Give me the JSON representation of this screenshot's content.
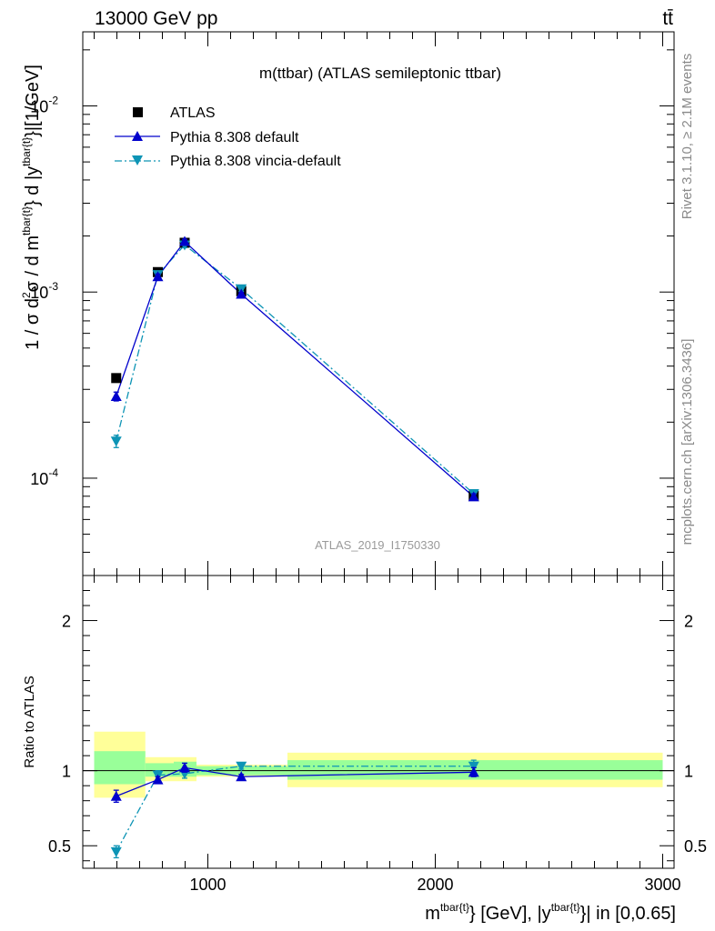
{
  "header": {
    "left": "13000 GeV pp",
    "right": "tt̄"
  },
  "side_labels": {
    "rivet": "Rivet 3.1.10, ≥ 2.1M events",
    "mcplots": "mcplots.cern.ch [arXiv:1306.3436]"
  },
  "main": {
    "title": "m(ttbar) (ATLAS semileptonic ttbar)",
    "watermark": "ATLAS_2019_I1750330",
    "ylabel_html": "1 / σ d²σ / d m^{tbar{t}} d |y^{tbar{t}}|[1/GeV]",
    "ylabel_parts": {
      "a": "1 / σ d",
      "a_sup": "2",
      "b": "σ / d m",
      "b_sup": "tbar{t}",
      "c": "} d |y",
      "c_sup": "tbar{t}",
      "d": "}|[1/GeV]"
    },
    "legend": [
      {
        "label": "ATLAS"
      },
      {
        "label": "Pythia 8.308 default"
      },
      {
        "label": "Pythia 8.308 vincia-default"
      }
    ]
  },
  "ratio": {
    "ylabel": "Ratio to ATLAS"
  },
  "xaxis": {
    "label_parts": {
      "a": "m",
      "a_sup": "tbar{t}",
      "b": "} [GeV], |y",
      "b_sup": "tbar{t}",
      "c": "}| in [0,0.65]"
    }
  },
  "colors": {
    "data": "#000000",
    "default": "#0000cc",
    "vincia": "#0d94b5",
    "band_inner": "#99ff99",
    "band_outer": "#ffff99"
  },
  "chart_data": [
    {
      "type": "scatter",
      "scale": "log-y",
      "xlim": [
        450,
        3050
      ],
      "ylim": [
        3e-05,
        0.025
      ],
      "x_ticks": [
        1000,
        2000,
        3000
      ],
      "x_tick_labels": [
        "1000",
        "2000",
        "3000"
      ],
      "y_ticks": [
        0.0001,
        0.001,
        0.01
      ],
      "y_tick_labels": [
        "10^-4",
        "10^-3",
        "10^-2"
      ],
      "bins": [
        [
          500,
          725
        ],
        [
          725,
          850
        ],
        [
          850,
          950
        ],
        [
          950,
          1350
        ],
        [
          1350,
          3000
        ]
      ],
      "x": [
        597,
        780,
        898,
        1147,
        2169
      ],
      "series": [
        {
          "name": "ATLAS",
          "values": [
            0.000345,
            0.00128,
            0.00184,
            0.00101,
            8.05e-05
          ],
          "errors": [
            1.2e-05,
            4e-05,
            5e-05,
            3e-05,
            4e-06
          ]
        },
        {
          "name": "Pythia 8.308 default",
          "values": [
            0.000275,
            0.00121,
            0.00187,
            0.000975,
            7.95e-05
          ],
          "errors": [
            1.5e-05,
            4e-05,
            5e-05,
            2e-05,
            3e-06
          ]
        },
        {
          "name": "Pythia 8.308 vincia-default",
          "values": [
            0.000158,
            0.00124,
            0.00179,
            0.00104,
            8.25e-05
          ],
          "errors": [
            1.2e-05,
            4e-05,
            6e-05,
            3e-05,
            4e-06
          ]
        }
      ]
    },
    {
      "type": "line",
      "ylabel": "Ratio to ATLAS",
      "xlim": [
        450,
        3050
      ],
      "ylim": [
        0.35,
        2.3
      ],
      "y_ticks": [
        0.5,
        1,
        2
      ],
      "y_tick_labels": [
        "0.5",
        "1",
        "2"
      ],
      "x": [
        597,
        780,
        898,
        1147,
        2169
      ],
      "bins": [
        [
          500,
          725
        ],
        [
          725,
          850
        ],
        [
          850,
          950
        ],
        [
          950,
          1350
        ],
        [
          1350,
          3000
        ]
      ],
      "band_inner": [
        [
          0.91,
          1.13
        ],
        [
          0.96,
          1.05
        ],
        [
          0.96,
          1.06
        ],
        [
          0.97,
          1.03
        ],
        [
          0.94,
          1.07
        ]
      ],
      "band_outer": [
        [
          0.82,
          1.26
        ],
        [
          0.93,
          1.09
        ],
        [
          0.93,
          1.09
        ],
        [
          0.96,
          1.04
        ],
        [
          0.89,
          1.12
        ]
      ],
      "series": [
        {
          "name": "Pythia 8.308 default",
          "values": [
            0.83,
            0.94,
            1.02,
            0.96,
            0.99
          ],
          "errors": [
            0.04,
            0.02,
            0.03,
            0.015,
            0.03
          ]
        },
        {
          "name": "Pythia 8.308 vincia-default",
          "values": [
            0.46,
            0.97,
            0.98,
            1.03,
            1.03
          ],
          "errors": [
            0.04,
            0.03,
            0.03,
            0.02,
            0.04
          ]
        }
      ]
    }
  ]
}
